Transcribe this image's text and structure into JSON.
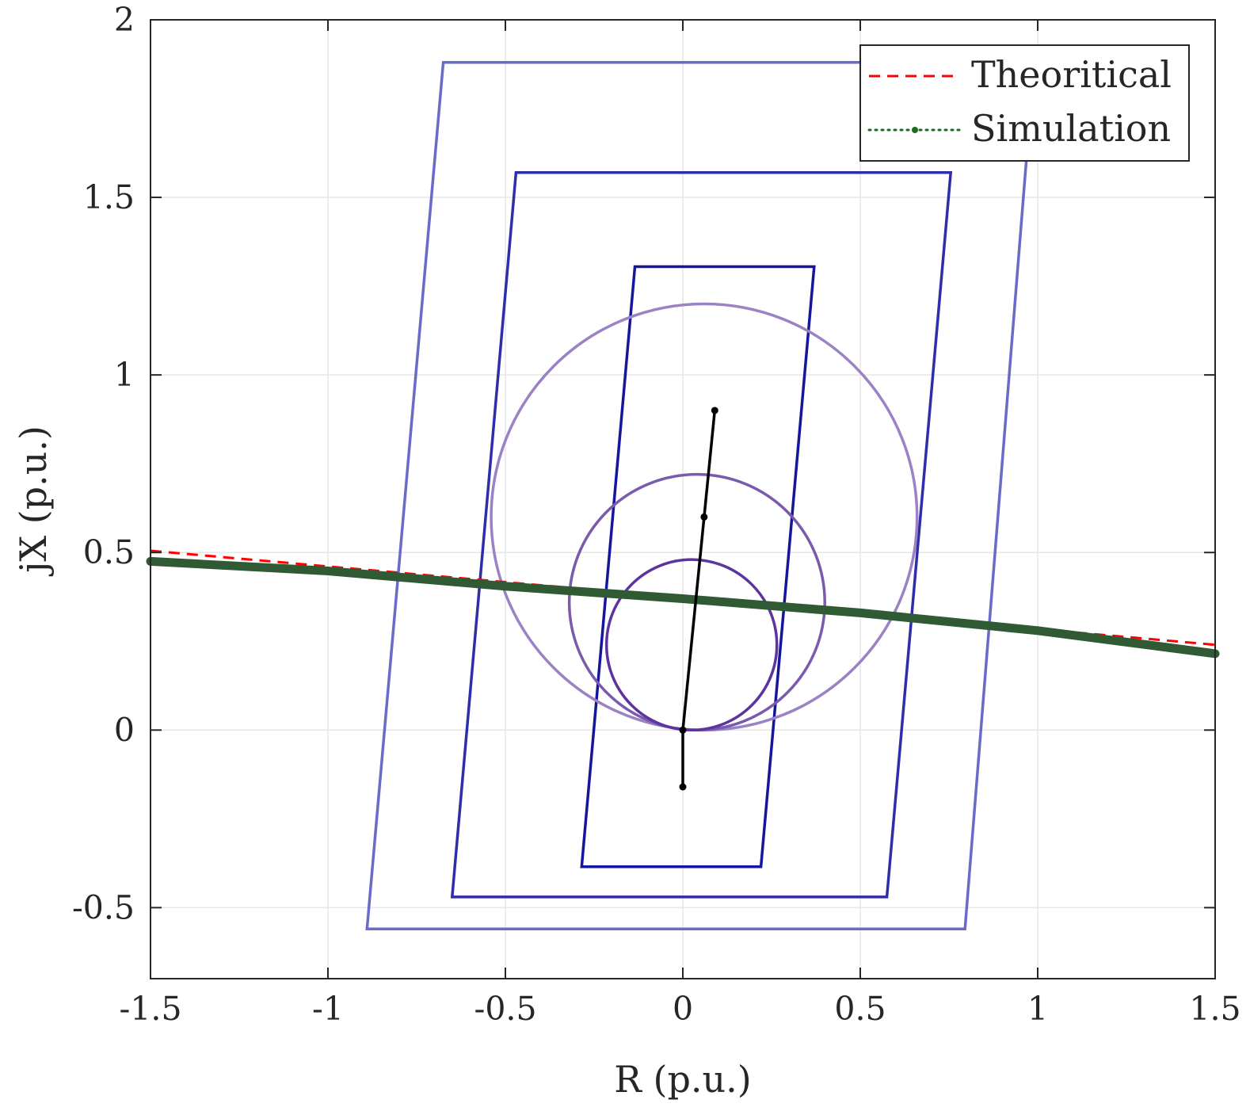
{
  "chart_data": {
    "type": "line",
    "title": "",
    "xlabel": "R (p.u.)",
    "ylabel": "jX (p.u.)",
    "xlim": [
      -1.5,
      1.5
    ],
    "ylim": [
      -0.7,
      2
    ],
    "xticks": [
      -1.5,
      -1,
      -0.5,
      0,
      0.5,
      1,
      1.5
    ],
    "xtick_labels": [
      "-1.5",
      "-1",
      "-0.5",
      "0",
      "0.5",
      "1",
      "1.5"
    ],
    "yticks": [
      -0.5,
      0,
      0.5,
      1,
      1.5,
      2
    ],
    "ytick_labels": [
      "-0.5",
      "0",
      "0.5",
      "1",
      "1.5",
      "2"
    ],
    "grid": true,
    "legend": {
      "position": "top-right",
      "entries": [
        {
          "label": "Theoritical",
          "color": "#ff0000",
          "style": "dashed"
        },
        {
          "label": "Simulation",
          "color": "#1f6b1f",
          "style": "dotted-marker"
        }
      ]
    },
    "series": [
      {
        "name": "Theoritical",
        "kind": "line",
        "color": "#ff0000",
        "style": "dashed",
        "x": [
          -1.5,
          1.5
        ],
        "y": [
          0.505,
          0.24
        ]
      },
      {
        "name": "Simulation",
        "kind": "line",
        "color": "#2f5a34",
        "style": "dotted-marker",
        "x": [
          -1.5,
          -1.0,
          -0.5,
          0.0,
          0.5,
          1.0,
          1.5
        ],
        "y": [
          0.475,
          0.448,
          0.405,
          0.37,
          0.33,
          0.28,
          0.215
        ]
      }
    ],
    "zones": [
      {
        "shape": "polygon",
        "color": "#6a6ac8",
        "points": [
          [
            -0.675,
            1.88
          ],
          [
            0.99,
            1.88
          ],
          [
            0.795,
            -0.56
          ],
          [
            -0.89,
            -0.56
          ]
        ]
      },
      {
        "shape": "polygon",
        "color": "#2e2eaa",
        "points": [
          [
            -0.47,
            1.57
          ],
          [
            0.755,
            1.57
          ],
          [
            0.575,
            -0.47
          ],
          [
            -0.65,
            -0.47
          ]
        ]
      },
      {
        "shape": "polygon",
        "color": "#16169c",
        "points": [
          [
            -0.135,
            1.305
          ],
          [
            0.37,
            1.305
          ],
          [
            0.22,
            -0.385
          ],
          [
            -0.285,
            -0.385
          ]
        ]
      },
      {
        "shape": "circle",
        "color": "#9b82c4",
        "center": [
          0.06,
          0.6
        ],
        "radius": 0.6
      },
      {
        "shape": "circle",
        "color": "#7a5aad",
        "center": [
          0.04,
          0.36
        ],
        "radius": 0.36
      },
      {
        "shape": "circle",
        "color": "#5d349d",
        "center": [
          0.025,
          0.24
        ],
        "radius": 0.24
      }
    ],
    "line_impedance": {
      "color": "#000000",
      "x": [
        0.0,
        0.0,
        0.06,
        0.09
      ],
      "y": [
        -0.16,
        0.0,
        0.6,
        0.9
      ]
    }
  }
}
